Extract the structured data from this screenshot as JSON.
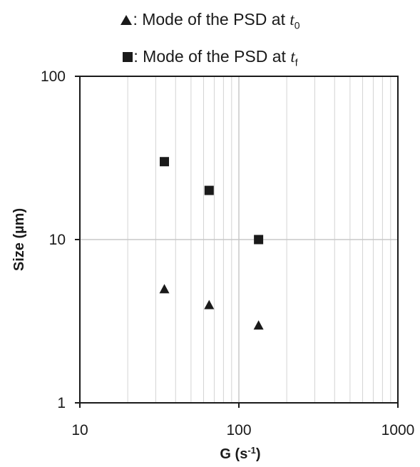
{
  "chart_data": {
    "type": "scatter",
    "xlabel": "G (s",
    "xlabel_sup": "-1",
    "xlabel_end": ")",
    "ylabel": "Size (µm)",
    "x_scale": "log",
    "y_scale": "log",
    "xlim": [
      10,
      1000
    ],
    "ylim": [
      1,
      100
    ],
    "x_ticks": [
      {
        "value": 10,
        "label": "10"
      },
      {
        "value": 100,
        "label": "100"
      },
      {
        "value": 1000,
        "label": "1000"
      }
    ],
    "y_ticks": [
      {
        "value": 1,
        "label": "1"
      },
      {
        "value": 10,
        "label": "10"
      },
      {
        "value": 100,
        "label": "100"
      }
    ],
    "grid": true,
    "legend_position": "top",
    "series": [
      {
        "name_prefix": ": Mode of the PSD at ",
        "name_var": "t",
        "name_sub": "0",
        "marker": "triangle",
        "color": "#1a1a1a",
        "x": [
          34,
          65,
          133
        ],
        "y": [
          5,
          4,
          3
        ]
      },
      {
        "name_prefix": ": Mode of the PSD at ",
        "name_var": "t",
        "name_sub": "f",
        "marker": "square",
        "color": "#1a1a1a",
        "x": [
          34,
          65,
          133
        ],
        "y": [
          30,
          20,
          10
        ]
      }
    ]
  }
}
